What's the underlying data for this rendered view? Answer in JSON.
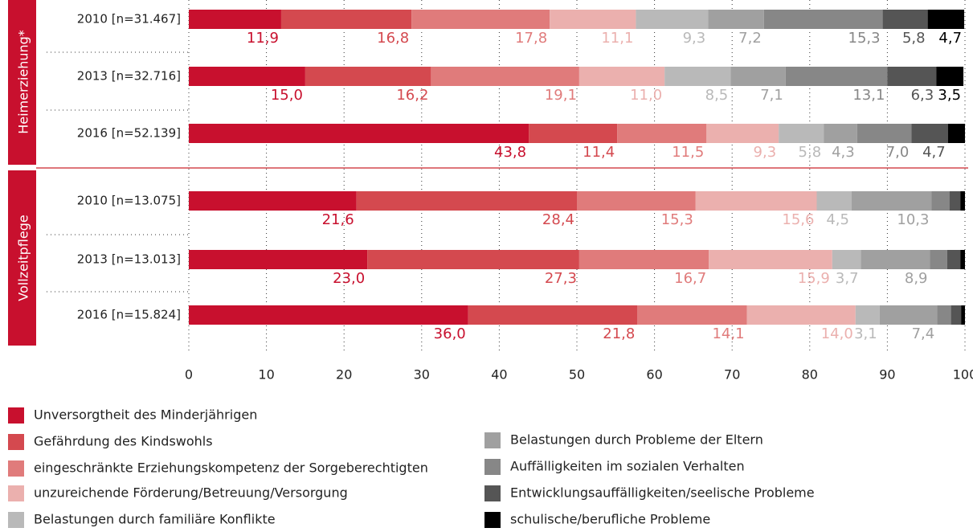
{
  "chart_data": {
    "type": "stacked_bar_horizontal",
    "groups": [
      "Heimerziehung*",
      "Vollzeitpflege"
    ],
    "categories": [
      "2010 [n=31.467]",
      "2013 [n=32.716]",
      "2016 [n=52.139]",
      "2010 [n=13.075]",
      "2013 [n=13.013]",
      "2016 [n=15.824]"
    ],
    "series": [
      {
        "name": "Unversorgtheit des Minderjährigen",
        "color": "#c8102e",
        "values": [
          11.9,
          15.0,
          43.8,
          21.6,
          23.0,
          36.0
        ],
        "value_labels": [
          "11,9",
          "15,0",
          "43,8",
          "21,6",
          "23,0",
          "36,0"
        ]
      },
      {
        "name": "Gefährdung des Kindswohls",
        "color": "#d4494f",
        "values": [
          16.8,
          16.2,
          11.4,
          28.4,
          27.3,
          21.8
        ],
        "value_labels": [
          "16,8",
          "16,2",
          "11,4",
          "28,4",
          "27,3",
          "21,8"
        ]
      },
      {
        "name": "eingeschränkte Erziehungskompetenz der Sorgeberechtigten",
        "color": "#e07b7b",
        "values": [
          17.8,
          19.1,
          11.5,
          15.3,
          16.7,
          14.1
        ],
        "value_labels": [
          "17,8",
          "19,1",
          "11,5",
          "15,3",
          "16,7",
          "14,1"
        ]
      },
      {
        "name": "unzureichende Förderung/Betreuung/Versorgung",
        "color": "#ebb0ae",
        "values": [
          11.1,
          11.0,
          9.3,
          15.6,
          15.9,
          14.0
        ],
        "value_labels": [
          "11,1",
          "11,0",
          "9,3",
          "15,6",
          "15,9",
          "14,0"
        ]
      },
      {
        "name": "Belastungen durch familiäre Konflikte",
        "color": "#b9b9b9",
        "values": [
          9.3,
          8.5,
          5.8,
          4.5,
          3.7,
          3.1
        ],
        "value_labels": [
          "9,3",
          "8,5",
          "5,8",
          "4,5",
          "3,7",
          "3,1"
        ]
      },
      {
        "name": "Belastungen durch Probleme der Eltern",
        "color": "#a0a0a0",
        "values": [
          7.2,
          7.1,
          4.3,
          10.3,
          8.9,
          7.4
        ],
        "value_labels": [
          "7,2",
          "7,1",
          "4,3",
          "10,3",
          "8,9",
          "7,4"
        ]
      },
      {
        "name": "Auffälligkeiten im sozialen Verhalten",
        "color": "#878787",
        "values": [
          15.3,
          13.1,
          7.0,
          2.3,
          2.2,
          1.8
        ],
        "value_labels": [
          "15,3",
          "13,1",
          "7,0",
          null,
          null,
          null
        ]
      },
      {
        "name": "Entwicklungsauffälligkeiten/seelische Probleme",
        "color": "#555555",
        "values": [
          5.8,
          6.3,
          4.7,
          1.4,
          1.7,
          1.3
        ],
        "value_labels": [
          "5,8",
          "6,3",
          "4,7",
          null,
          null,
          null
        ]
      },
      {
        "name": "schulische/berufliche Probleme",
        "color": "#000000",
        "values": [
          4.7,
          3.5,
          2.2,
          0.6,
          0.6,
          0.5
        ],
        "value_labels": [
          "4,7",
          "3,5",
          null,
          null,
          null,
          null
        ]
      }
    ],
    "xlim": [
      0,
      100
    ],
    "xticks": [
      0,
      10,
      20,
      30,
      40,
      50,
      60,
      70,
      80,
      90,
      100
    ],
    "grid": true
  }
}
